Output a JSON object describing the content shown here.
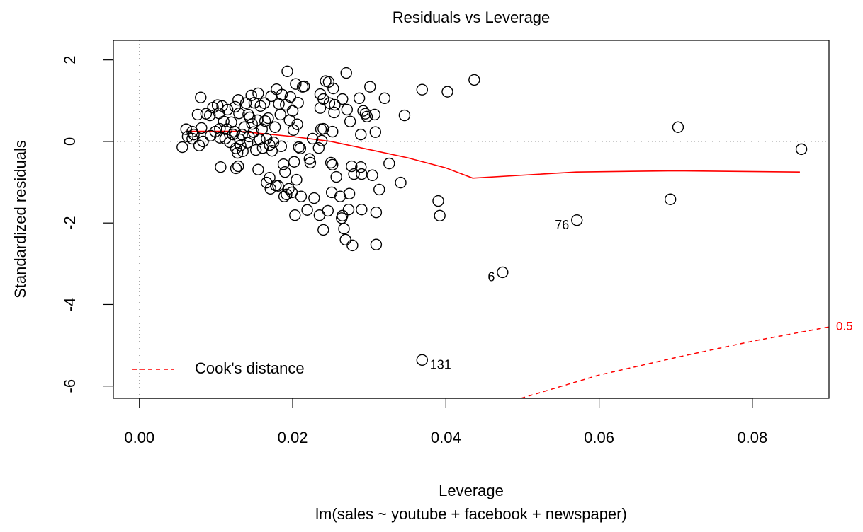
{
  "chart_data": {
    "type": "scatter",
    "title": "Residuals vs Leverage",
    "xlabel": "Leverage",
    "ylabel": "Standardized residuals",
    "subtitle": "lm(sales ~ youtube + facebook + newspaper)",
    "xlim": [
      -0.0034,
      0.09
    ],
    "ylim": [
      -6.3,
      2.48
    ],
    "xticks": [
      {
        "value": 0,
        "label": "0.00"
      },
      0.02,
      0.04,
      0.06,
      0.08
    ],
    "yticks": [
      -6,
      -4,
      -2,
      0,
      2
    ],
    "hline": 0,
    "vline": 0,
    "legend": "bottomleft",
    "series": [
      {
        "color": "#000000",
        "x": [
          0.0056,
          0.0061,
          0.0063,
          0.0069,
          0.0069,
          0.0071,
          0.0076,
          0.0078,
          0.008,
          0.0081,
          0.0083,
          0.0087,
          0.0092,
          0.0093,
          0.0096,
          0.0099,
          0.0102,
          0.0104,
          0.0105,
          0.0105,
          0.0106,
          0.0108,
          0.011,
          0.0112,
          0.0114,
          0.0115,
          0.0118,
          0.012,
          0.0122,
          0.0124,
          0.0125,
          0.0126,
          0.0126,
          0.0128,
          0.0129,
          0.0129,
          0.013,
          0.0131,
          0.0132,
          0.0134,
          0.0135,
          0.0137,
          0.0139,
          0.0141,
          0.0142,
          0.0143,
          0.0144,
          0.0146,
          0.0147,
          0.0149,
          0.015,
          0.0152,
          0.0154,
          0.0155,
          0.0155,
          0.0157,
          0.0158,
          0.016,
          0.0161,
          0.0163,
          0.0164,
          0.0166,
          0.0166,
          0.0168,
          0.017,
          0.017,
          0.0171,
          0.0172,
          0.0173,
          0.0175,
          0.0177,
          0.0178,
          0.0179,
          0.0181,
          0.0182,
          0.0184,
          0.0185,
          0.0186,
          0.0188,
          0.0189,
          0.019,
          0.0191,
          0.0192,
          0.0193,
          0.0195,
          0.0196,
          0.0197,
          0.0199,
          0.02,
          0.0201,
          0.0202,
          0.0203,
          0.0204,
          0.0205,
          0.0206,
          0.0207,
          0.0208,
          0.021,
          0.0211,
          0.0213,
          0.0215,
          0.0219,
          0.0222,
          0.0223,
          0.0226,
          0.0228,
          0.0234,
          0.0235,
          0.0236,
          0.0236,
          0.0237,
          0.0238,
          0.024,
          0.024,
          0.024,
          0.0243,
          0.0246,
          0.0247,
          0.0248,
          0.025,
          0.0251,
          0.0252,
          0.0252,
          0.0253,
          0.0254,
          0.0255,
          0.0257,
          0.0262,
          0.0264,
          0.0265,
          0.0265,
          0.0267,
          0.0269,
          0.027,
          0.0271,
          0.0273,
          0.0274,
          0.0275,
          0.0277,
          0.0278,
          0.028,
          0.0287,
          0.0289,
          0.0289,
          0.029,
          0.029,
          0.0292,
          0.0295,
          0.0297,
          0.0301,
          0.0304,
          0.0307,
          0.0308,
          0.0309,
          0.0309,
          0.0313,
          0.032,
          0.0326,
          0.0341,
          0.0346,
          0.0369,
          0.039,
          0.0392,
          0.0402,
          0.0437,
          0.0693,
          0.0703,
          0.0864
        ],
        "values": [
          -0.14,
          0.3,
          0.12,
          0.24,
          0.07,
          0.17,
          0.66,
          -0.1,
          1.08,
          0.33,
          0.0,
          0.68,
          0.64,
          0.14,
          0.83,
          0.24,
          0.89,
          0.69,
          0.31,
          0.09,
          -0.63,
          0.87,
          0.49,
          0.07,
          0.3,
          0.78,
          -0.02,
          0.47,
          0.17,
          0.24,
          0.85,
          -0.17,
          -0.66,
          -0.28,
          1.02,
          -0.61,
          0.69,
          0.05,
          -0.1,
          0.17,
          -0.24,
          0.35,
          0.94,
          -0.03,
          0.66,
          0.12,
          0.59,
          1.13,
          0.43,
          0.23,
          0.95,
          -0.21,
          0.52,
          -0.69,
          1.18,
          0.05,
          0.87,
          0.3,
          -0.16,
          0.94,
          0.5,
          -1.01,
          0.07,
          0.57,
          -0.89,
          -0.09,
          -1.16,
          1.11,
          -0.23,
          -0.02,
          0.35,
          -1.08,
          1.28,
          -1.09,
          0.92,
          0.66,
          -0.12,
          1.15,
          -0.56,
          -1.35,
          -0.75,
          0.9,
          -1.3,
          1.72,
          -1.16,
          0.52,
          1.09,
          -1.25,
          0.75,
          0.28,
          -0.5,
          -1.81,
          1.41,
          -0.94,
          0.42,
          0.95,
          -0.14,
          -0.17,
          -1.35,
          1.34,
          1.35,
          -1.68,
          -0.43,
          -0.52,
          0.07,
          -1.39,
          -0.16,
          -1.81,
          0.82,
          1.16,
          0.3,
          0.02,
          1.04,
          0.31,
          -2.17,
          1.48,
          -1.7,
          1.46,
          0.94,
          -0.52,
          -1.25,
          -0.57,
          0.24,
          1.3,
          0.71,
          0.9,
          -0.87,
          -1.35,
          -1.88,
          1.04,
          -1.82,
          -2.14,
          -2.41,
          1.68,
          0.78,
          -1.67,
          -1.28,
          0.49,
          -0.61,
          -2.55,
          -0.8,
          1.06,
          0.17,
          -0.63,
          -0.8,
          -1.67,
          0.75,
          0.68,
          0.61,
          1.34,
          -0.83,
          0.66,
          0.23,
          -1.74,
          -2.53,
          -1.18,
          1.06,
          -0.54,
          -1.01,
          0.64,
          1.27,
          -1.46,
          -1.82,
          1.22,
          1.51,
          -1.42,
          0.35,
          -0.19
        ]
      },
      {
        "color": "#000000",
        "x": [
          0.0369,
          0.0474,
          0.0571
        ],
        "values": [
          -5.36,
          -3.21,
          -1.93
        ],
        "point_labels": [
          "131",
          "6",
          "76"
        ]
      }
    ],
    "smooth": {
      "color": "#ff0000",
      "x": [
        0.006,
        0.013,
        0.02,
        0.025,
        0.03,
        0.035,
        0.04,
        0.0435,
        0.057,
        0.07,
        0.0862
      ],
      "values": [
        0.25,
        0.25,
        0.12,
        0.0,
        -0.2,
        -0.4,
        -0.65,
        -0.9,
        -0.75,
        -0.72,
        -0.75
      ]
    },
    "cook_contour": {
      "name": "Cook's distance",
      "color": "#ff0000",
      "dashed": true,
      "label": "0.5",
      "x": [
        0.0498,
        0.06,
        0.07,
        0.08,
        0.09
      ],
      "values": [
        -6.3,
        -5.73,
        -5.3,
        -4.9,
        -4.55
      ]
    }
  }
}
